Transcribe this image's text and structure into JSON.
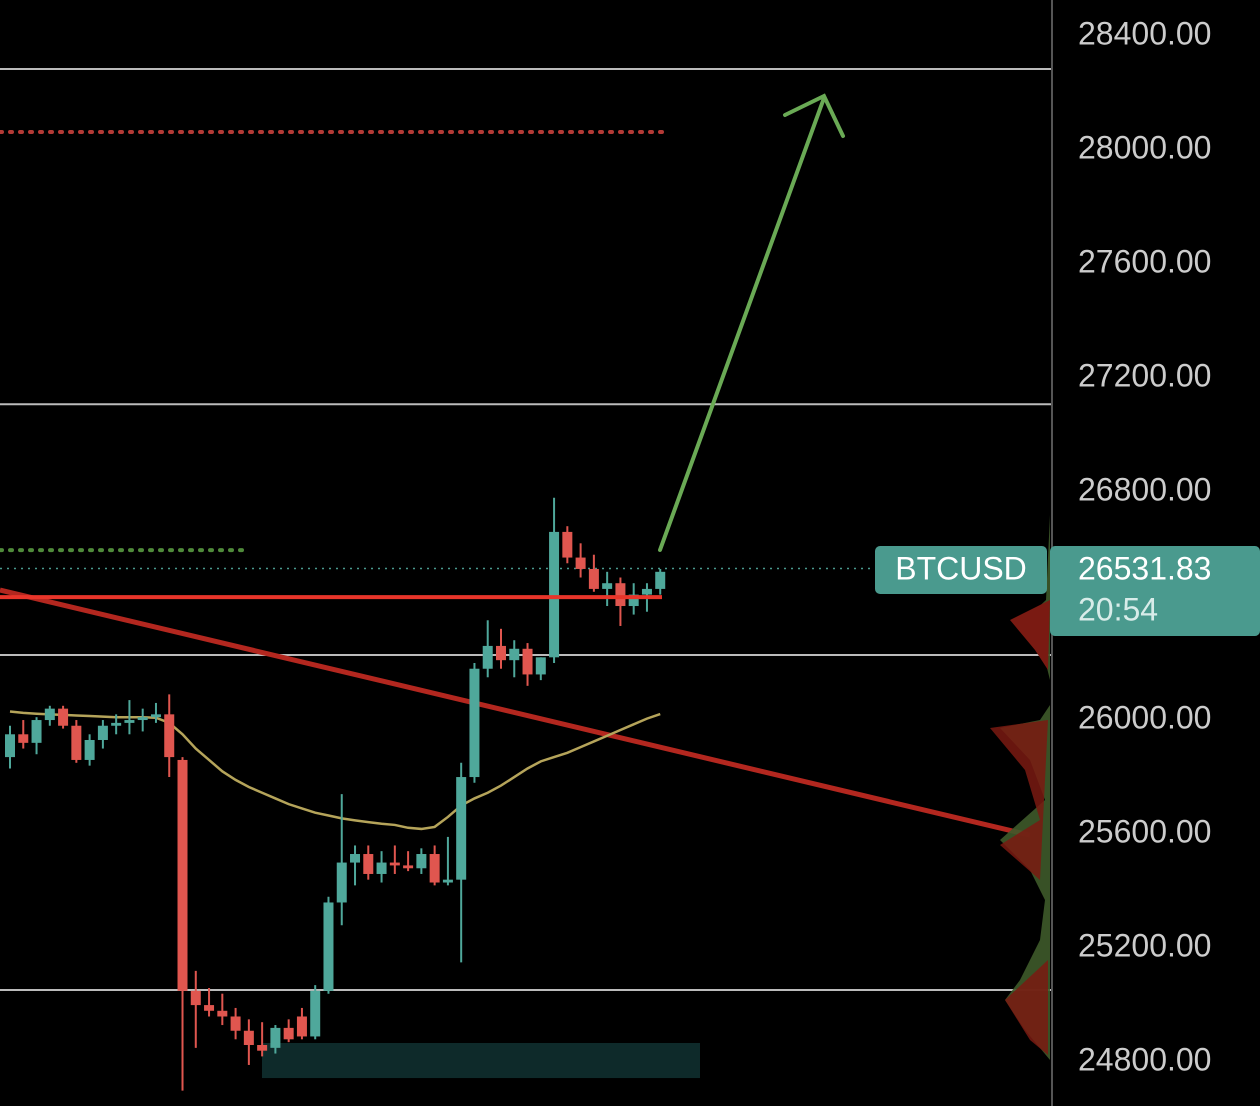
{
  "chart_data": {
    "type": "candlestick",
    "symbol": "BTCUSD",
    "last_price": 26531.83,
    "countdown": "20:54",
    "ylim": [
      24646,
      28526
    ],
    "yticks": [
      {
        "value": 28400,
        "label": "28400.00"
      },
      {
        "value": 28000,
        "label": "28000.00"
      },
      {
        "value": 27600,
        "label": "27600.00"
      },
      {
        "value": 27200,
        "label": "27200.00"
      },
      {
        "value": 26800,
        "label": "26800.00"
      },
      {
        "value": 26000,
        "label": "26000.00"
      },
      {
        "value": 25600,
        "label": "25600.00"
      },
      {
        "value": 25200,
        "label": "25200.00"
      },
      {
        "value": 24800,
        "label": "24800.00"
      }
    ],
    "up_color": "#4fa89b",
    "down_color": "#e0564f",
    "open": [
      25870,
      25950,
      25920,
      26000,
      26040,
      25980,
      25860,
      25930,
      25980,
      25990,
      26000,
      26010,
      26020,
      25860,
      25050,
      25000,
      24980,
      24960,
      24910,
      24860,
      24850,
      24920,
      24960,
      24890,
      25050,
      25360,
      25500,
      25530,
      25460,
      25500,
      25490,
      25480,
      25530,
      25430,
      25440,
      25800,
      26180,
      26260,
      26210,
      26250,
      26160,
      26220,
      26660,
      26570,
      26530,
      26460,
      26480,
      26400,
      26440,
      26460
    ],
    "high": [
      25980,
      26000,
      26010,
      26050,
      26050,
      26000,
      25950,
      26000,
      26020,
      26070,
      26040,
      26060,
      26090,
      25870,
      25120,
      25060,
      25040,
      24990,
      24950,
      24940,
      24930,
      24950,
      24990,
      25070,
      25380,
      25740,
      25560,
      25560,
      25540,
      25560,
      25540,
      25550,
      25560,
      25590,
      25850,
      26200,
      26350,
      26320,
      26280,
      26270,
      26220,
      26780,
      26680,
      26620,
      26580,
      26520,
      26500,
      26480,
      26480,
      26530
    ],
    "low": [
      25830,
      25900,
      25880,
      25980,
      25970,
      25850,
      25840,
      25900,
      25950,
      25950,
      25960,
      25990,
      25800,
      24700,
      24850,
      24960,
      24930,
      24880,
      24790,
      24820,
      24830,
      24870,
      24880,
      24880,
      25040,
      25280,
      25420,
      25440,
      25430,
      25460,
      25470,
      25460,
      25420,
      25420,
      25150,
      25780,
      26150,
      26180,
      26150,
      26120,
      26140,
      26200,
      26550,
      26500,
      26450,
      26400,
      26330,
      26370,
      26380,
      26440
    ],
    "close": [
      25950,
      25920,
      26000,
      26040,
      25980,
      25860,
      25930,
      25980,
      25990,
      26000,
      26010,
      26020,
      25870,
      25050,
      25000,
      24980,
      24960,
      24910,
      24860,
      24840,
      24920,
      24880,
      24890,
      25050,
      25360,
      25500,
      25530,
      25460,
      25500,
      25490,
      25480,
      25530,
      25430,
      25440,
      25800,
      26180,
      26260,
      26210,
      26250,
      26160,
      26220,
      26660,
      26570,
      26530,
      26460,
      26480,
      26400,
      26440,
      26460,
      26520
    ],
    "ma": [
      26030,
      26025,
      26022,
      26020,
      26018,
      26016,
      26014,
      26012,
      26010,
      26010,
      26010,
      26008,
      25990,
      25950,
      25900,
      25860,
      25820,
      25790,
      25765,
      25745,
      25725,
      25705,
      25690,
      25675,
      25665,
      25655,
      25648,
      25642,
      25636,
      25632,
      25622,
      25618,
      25625,
      25660,
      25700,
      25725,
      25745,
      25770,
      25800,
      25830,
      25855,
      25870,
      25885,
      25905,
      25925,
      25945,
      25965,
      25985,
      26005,
      26021
    ],
    "ma_color": "#b5a45a",
    "levels": [
      28284,
      27108,
      26228,
      25053
    ],
    "resistance": 26431,
    "trendline": [
      26456,
      25596
    ],
    "dotted_red": 28063,
    "dotted_green": 26596,
    "zone": [
      24744,
      24867
    ]
  }
}
